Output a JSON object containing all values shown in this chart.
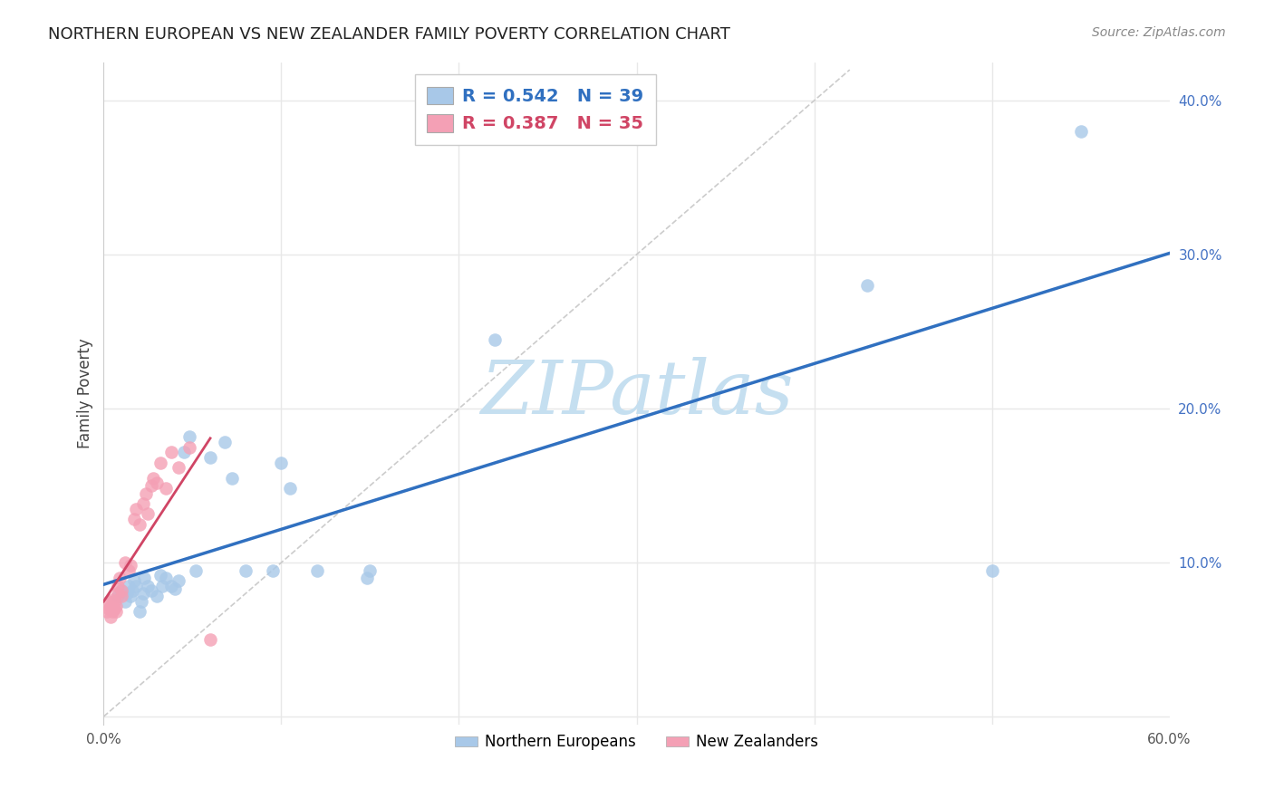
{
  "title": "NORTHERN EUROPEAN VS NEW ZEALANDER FAMILY POVERTY CORRELATION CHART",
  "source": "Source: ZipAtlas.com",
  "ylabel": "Family Poverty",
  "xlim": [
    0.0,
    0.6
  ],
  "ylim": [
    -0.005,
    0.425
  ],
  "blue_R": 0.542,
  "blue_N": 39,
  "pink_R": 0.387,
  "pink_N": 35,
  "blue_color": "#a8c8e8",
  "pink_color": "#f4a0b5",
  "blue_line_color": "#3070c0",
  "pink_line_color": "#d04565",
  "legend_label_blue": "Northern Europeans",
  "legend_label_pink": "New Zealanders",
  "blue_x": [
    0.008,
    0.01,
    0.012,
    0.013,
    0.014,
    0.015,
    0.016,
    0.017,
    0.018,
    0.02,
    0.021,
    0.022,
    0.023,
    0.025,
    0.027,
    0.03,
    0.032,
    0.033,
    0.035,
    0.038,
    0.04,
    0.042,
    0.045,
    0.048,
    0.052,
    0.06,
    0.068,
    0.072,
    0.08,
    0.095,
    0.1,
    0.105,
    0.12,
    0.148,
    0.15,
    0.22,
    0.43,
    0.5,
    0.55
  ],
  "blue_y": [
    0.078,
    0.082,
    0.075,
    0.08,
    0.085,
    0.078,
    0.082,
    0.088,
    0.085,
    0.068,
    0.075,
    0.08,
    0.09,
    0.085,
    0.082,
    0.078,
    0.092,
    0.085,
    0.09,
    0.085,
    0.083,
    0.088,
    0.172,
    0.182,
    0.095,
    0.168,
    0.178,
    0.155,
    0.095,
    0.095,
    0.165,
    0.148,
    0.095,
    0.09,
    0.095,
    0.245,
    0.28,
    0.095,
    0.38
  ],
  "pink_x": [
    0.002,
    0.003,
    0.003,
    0.004,
    0.004,
    0.005,
    0.005,
    0.005,
    0.006,
    0.006,
    0.007,
    0.007,
    0.008,
    0.008,
    0.009,
    0.01,
    0.01,
    0.012,
    0.014,
    0.015,
    0.017,
    0.018,
    0.02,
    0.022,
    0.024,
    0.025,
    0.027,
    0.028,
    0.03,
    0.032,
    0.035,
    0.038,
    0.042,
    0.048,
    0.06
  ],
  "pink_y": [
    0.068,
    0.07,
    0.075,
    0.065,
    0.072,
    0.068,
    0.072,
    0.076,
    0.07,
    0.075,
    0.068,
    0.072,
    0.08,
    0.085,
    0.09,
    0.078,
    0.082,
    0.1,
    0.095,
    0.098,
    0.128,
    0.135,
    0.125,
    0.138,
    0.145,
    0.132,
    0.15,
    0.155,
    0.152,
    0.165,
    0.148,
    0.172,
    0.162,
    0.175,
    0.05
  ],
  "watermark_text": "ZIPatlas",
  "watermark_color": "#c5dff0",
  "background_color": "#ffffff",
  "grid_color": "#e8e8e8",
  "ytick_color": "#4472c4",
  "xtick_color": "#555555"
}
